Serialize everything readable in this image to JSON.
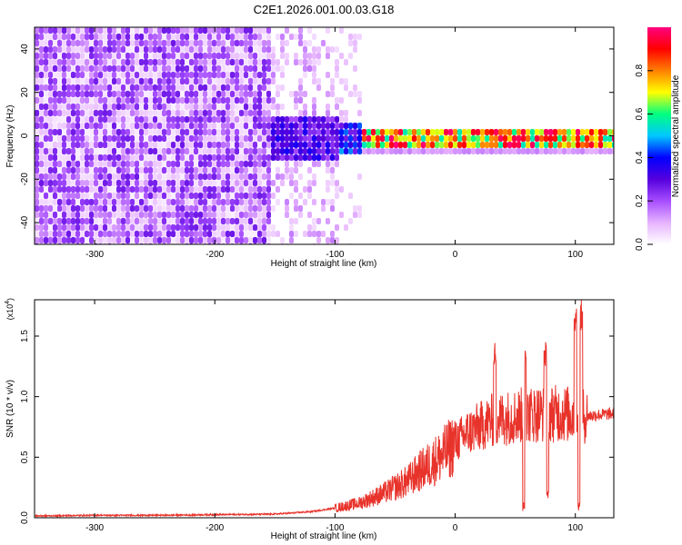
{
  "title": "C2E1.2026.001.00.03.G18",
  "chart_data": [
    {
      "type": "heatmap",
      "title": "C2E1.2026.001.00.03.G18",
      "xlabel": "Height of straight line (km)",
      "ylabel": "Frequency (Hz)",
      "xlim": [
        -350,
        132
      ],
      "ylim": [
        -50,
        50
      ],
      "xticks": [
        -300,
        -200,
        -100,
        0,
        100
      ],
      "yticks": [
        -40,
        -20,
        0,
        20,
        40
      ],
      "colorbar": {
        "label": "Normalized spectral amplitude",
        "range": [
          0,
          1
        ],
        "ticks": [
          "0.0",
          "0.2",
          "0.4",
          "0.6",
          "0.8"
        ],
        "colors": [
          "#ffffff",
          "#e6b3ff",
          "#a64dff",
          "#5500dd",
          "#0000ff",
          "#00c8ff",
          "#00ff80",
          "#ffff00",
          "#ff8000",
          "#ff0000",
          "#ff0080"
        ]
      },
      "regions": [
        {
          "name": "noise",
          "x_range": [
            -350,
            -100
          ],
          "freq_range": [
            -50,
            50
          ],
          "amplitude": "0.0-0.2"
        },
        {
          "name": "onset",
          "x_range": [
            -155,
            -80
          ],
          "freq_range": [
            -15,
            12
          ],
          "amplitude": "0.2-0.5"
        },
        {
          "name": "signal",
          "x_range": [
            -80,
            132
          ],
          "freq_center": 0,
          "freq_halfwidth": 2,
          "amplitude": "0.6-1.0"
        }
      ]
    },
    {
      "type": "line",
      "xlabel": "Height of straight line (km)",
      "ylabel": "SNR (10 * v/v)",
      "multiplier": "(x10",
      "multiplier_exp": "4",
      "xlim": [
        -350,
        132
      ],
      "ylim": [
        0,
        18000
      ],
      "xticks": [
        -300,
        -200,
        -100,
        0,
        100
      ],
      "yticks": [
        0,
        5000,
        10000,
        15000
      ],
      "ytick_labels": [
        "0.0",
        "0.5",
        "1.0",
        "1.5"
      ],
      "color": "#e8332b",
      "series": [
        {
          "name": "SNR",
          "x": [
            -350,
            -300,
            -250,
            -200,
            -150,
            -120,
            -100,
            -80,
            -60,
            -40,
            -30,
            -20,
            -10,
            0,
            10,
            20,
            30,
            40,
            50,
            60,
            70,
            80,
            90,
            100,
            110,
            120,
            132
          ],
          "y": [
            150,
            200,
            200,
            250,
            300,
            500,
            800,
            1200,
            2000,
            3000,
            3800,
            4500,
            5200,
            6200,
            7000,
            7500,
            8000,
            8200,
            8400,
            8500,
            8600,
            8600,
            8600,
            8500,
            8400,
            8500,
            8600
          ]
        }
      ],
      "spikes": [
        {
          "x": 33,
          "y": 14500
        },
        {
          "x": 58,
          "y": 14800
        },
        {
          "x": 75,
          "y": 14600
        },
        {
          "x": 100,
          "y": 18000
        },
        {
          "x": 105,
          "y": 18000
        }
      ],
      "dips": [
        {
          "x": 57,
          "y": 500
        },
        {
          "x": 77,
          "y": 1500
        },
        {
          "x": 103,
          "y": 600
        }
      ]
    }
  ]
}
